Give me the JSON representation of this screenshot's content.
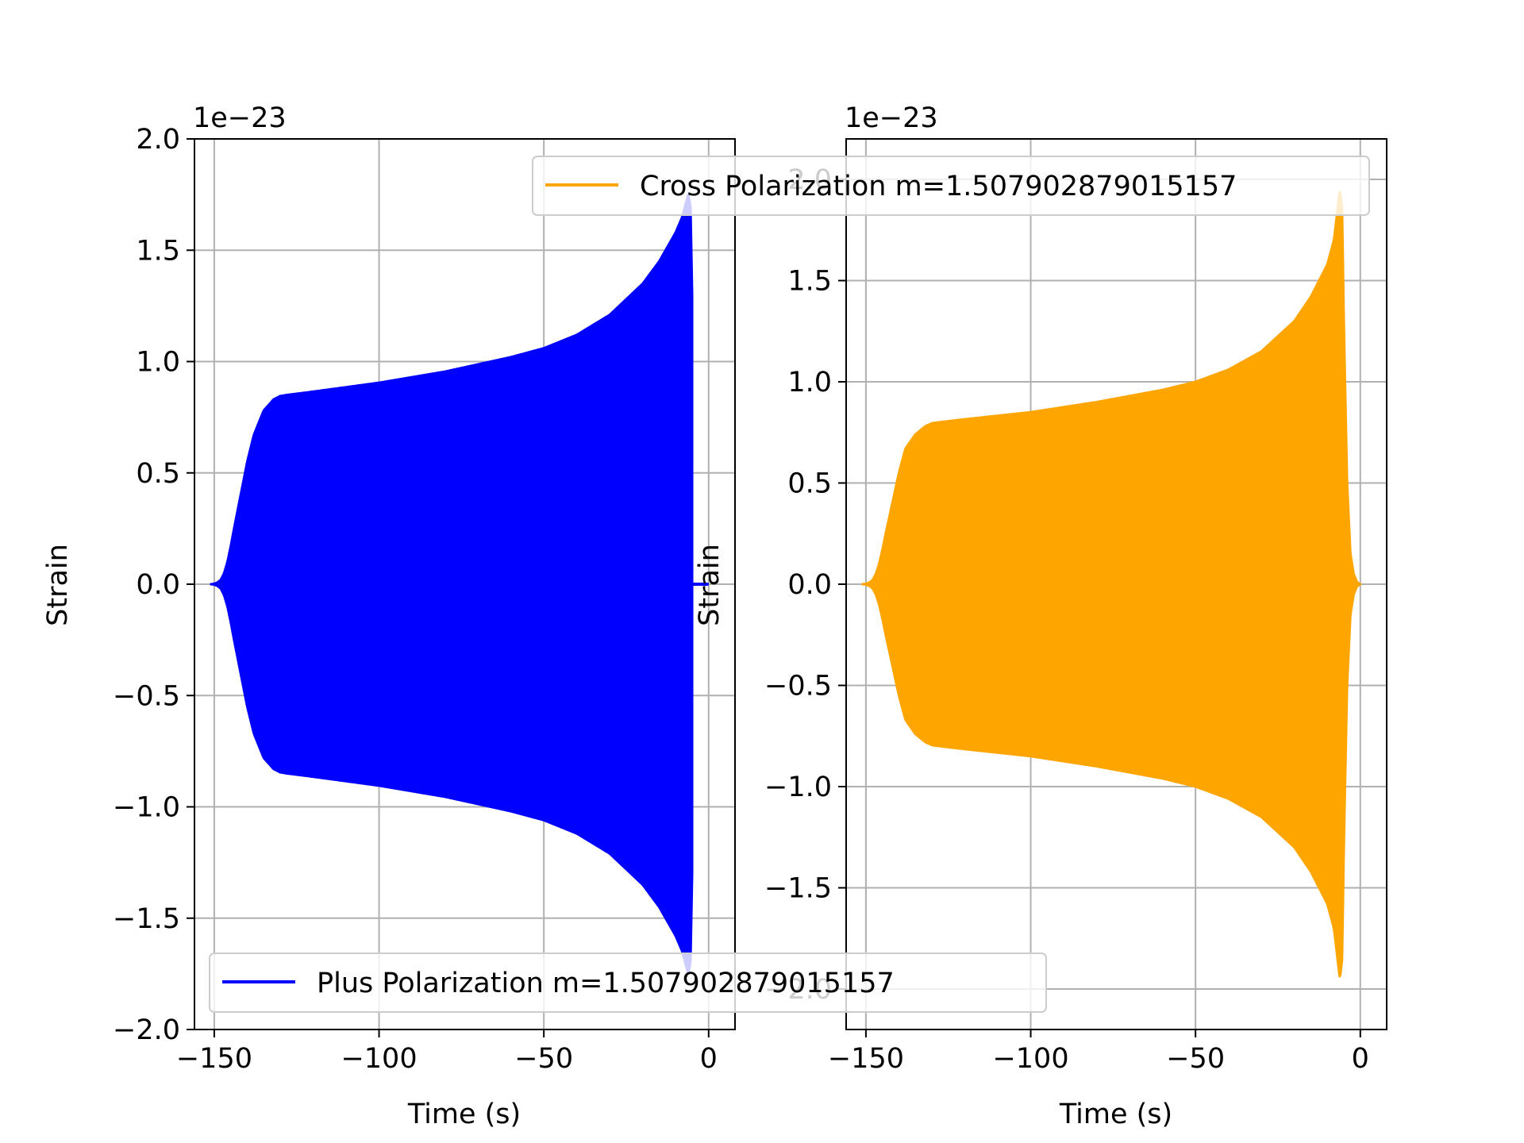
{
  "chart_data": [
    {
      "type": "line",
      "id": "plus",
      "series": [
        {
          "name": "Plus Polarization m=1.507902879015157",
          "color": "#0000ff",
          "envelope": {
            "t": [
              -151,
              -150,
              -149,
              -148,
              -147,
              -146,
              -145,
              -144,
              -142,
              -140,
              -138,
              -135,
              -132,
              -130,
              -128,
              -120,
              -100,
              -80,
              -60,
              -50,
              -40,
              -30,
              -20,
              -15,
              -10,
              -8,
              -6.2,
              -5.5,
              -5
            ],
            "amp": [
              0.0,
              0.002,
              0.008,
              0.02,
              0.05,
              0.1,
              0.17,
              0.25,
              0.4,
              0.55,
              0.67,
              0.78,
              0.83,
              0.845,
              0.85,
              0.865,
              0.905,
              0.955,
              1.02,
              1.06,
              1.12,
              1.21,
              1.35,
              1.45,
              1.58,
              1.65,
              1.75,
              1.7,
              1.3
            ]
          },
          "tail": {
            "t": [
              -5,
              0
            ],
            "amp": 0.0
          }
        }
      ],
      "xlabel": "Time (s)",
      "ylabel": "Strain",
      "offset_text": "1e−23",
      "xlim": [
        -156,
        8
      ],
      "ylim": [
        -2.0,
        2.0
      ],
      "xticks": [
        -150,
        -100,
        -50,
        0
      ],
      "xtick_labels": [
        "−150",
        "−100",
        "−50",
        "0"
      ],
      "yticks": [
        -2.0,
        -1.5,
        -1.0,
        -0.5,
        0.0,
        0.5,
        1.0,
        1.5,
        2.0
      ],
      "ytick_labels": [
        "−2.0",
        "−1.5",
        "−1.0",
        "−0.5",
        "0.0",
        "0.5",
        "1.0",
        "1.5",
        "2.0"
      ],
      "grid": true,
      "legend_placement": "lower-left"
    },
    {
      "type": "line",
      "id": "cross",
      "series": [
        {
          "name": "Cross Polarization m=1.507902879015157",
          "color": "#ffa500",
          "envelope": {
            "t": [
              -151,
              -150,
              -149,
              -148,
              -147,
              -146,
              -145,
              -144,
              -142,
              -140,
              -138,
              -135,
              -132,
              -130,
              -128,
              -120,
              -100,
              -80,
              -60,
              -50,
              -40,
              -30,
              -20,
              -15,
              -10,
              -8,
              -6.2,
              -5.5,
              -5,
              -4,
              -3,
              -2,
              -1,
              0
            ],
            "amp": [
              0.0,
              0.002,
              0.008,
              0.02,
              0.05,
              0.1,
              0.17,
              0.25,
              0.4,
              0.55,
              0.67,
              0.74,
              0.78,
              0.795,
              0.8,
              0.815,
              0.85,
              0.9,
              0.96,
              1.0,
              1.06,
              1.15,
              1.3,
              1.42,
              1.58,
              1.7,
              1.95,
              1.85,
              1.3,
              0.5,
              0.15,
              0.05,
              0.01,
              0.0
            ]
          }
        }
      ],
      "xlabel": "Time (s)",
      "ylabel": "Strain",
      "offset_text": "1e−23",
      "xlim": [
        -156,
        8
      ],
      "ylim": [
        -2.2,
        2.2
      ],
      "xticks": [
        -150,
        -100,
        -50,
        0
      ],
      "xtick_labels": [
        "−150",
        "−100",
        "−50",
        "0"
      ],
      "yticks": [
        -2.0,
        -1.5,
        -1.0,
        -0.5,
        0.0,
        0.5,
        1.0,
        1.5,
        2.0
      ],
      "ytick_labels": [
        "−2.0",
        "−1.5",
        "−1.0",
        "−0.5",
        "0.0",
        "0.5",
        "1.0",
        "1.5",
        "2.0"
      ],
      "grid": true,
      "legend_placement": "upper-right"
    }
  ]
}
